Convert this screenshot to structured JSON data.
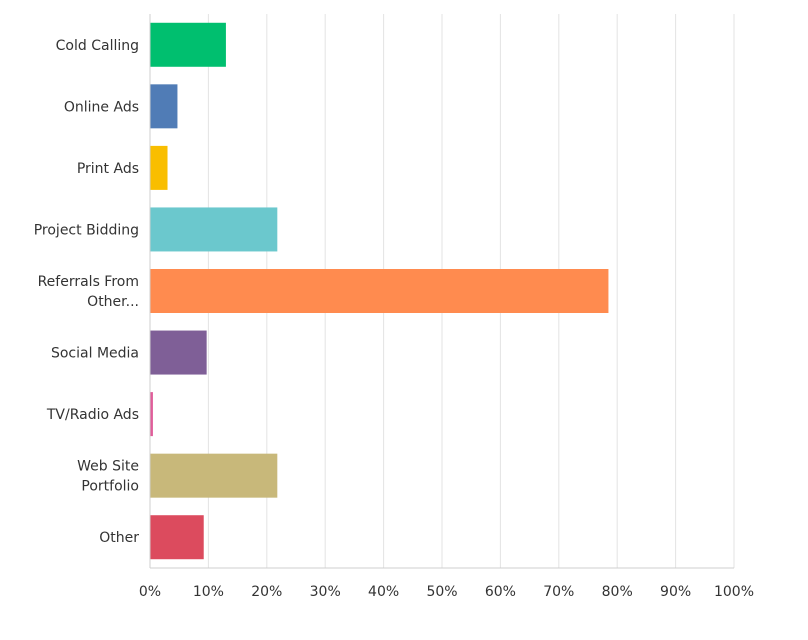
{
  "chart_data": {
    "type": "bar",
    "orientation": "horizontal",
    "categories": [
      [
        "Cold Calling"
      ],
      [
        "Online Ads"
      ],
      [
        "Print Ads"
      ],
      [
        "Project Bidding"
      ],
      [
        "Referrals From",
        "Other..."
      ],
      [
        "Social Media"
      ],
      [
        "TV/Radio Ads"
      ],
      [
        "Web Site",
        "Portfolio"
      ],
      [
        "Other"
      ]
    ],
    "values": [
      13,
      4.7,
      3,
      21.8,
      78.5,
      9.7,
      0.5,
      21.8,
      9.2
    ],
    "colors": [
      "#00bf6f",
      "#507cb6",
      "#f9be00",
      "#6bc8cd",
      "#ff8b4f",
      "#7f5f97",
      "#e05d9a",
      "#c8b87a",
      "#dc4b5e"
    ],
    "x_ticks": [
      "0%",
      "10%",
      "20%",
      "30%",
      "40%",
      "50%",
      "60%",
      "70%",
      "80%",
      "90%",
      "100%"
    ],
    "xlim": [
      0,
      100
    ],
    "grid": true,
    "legend": false
  }
}
